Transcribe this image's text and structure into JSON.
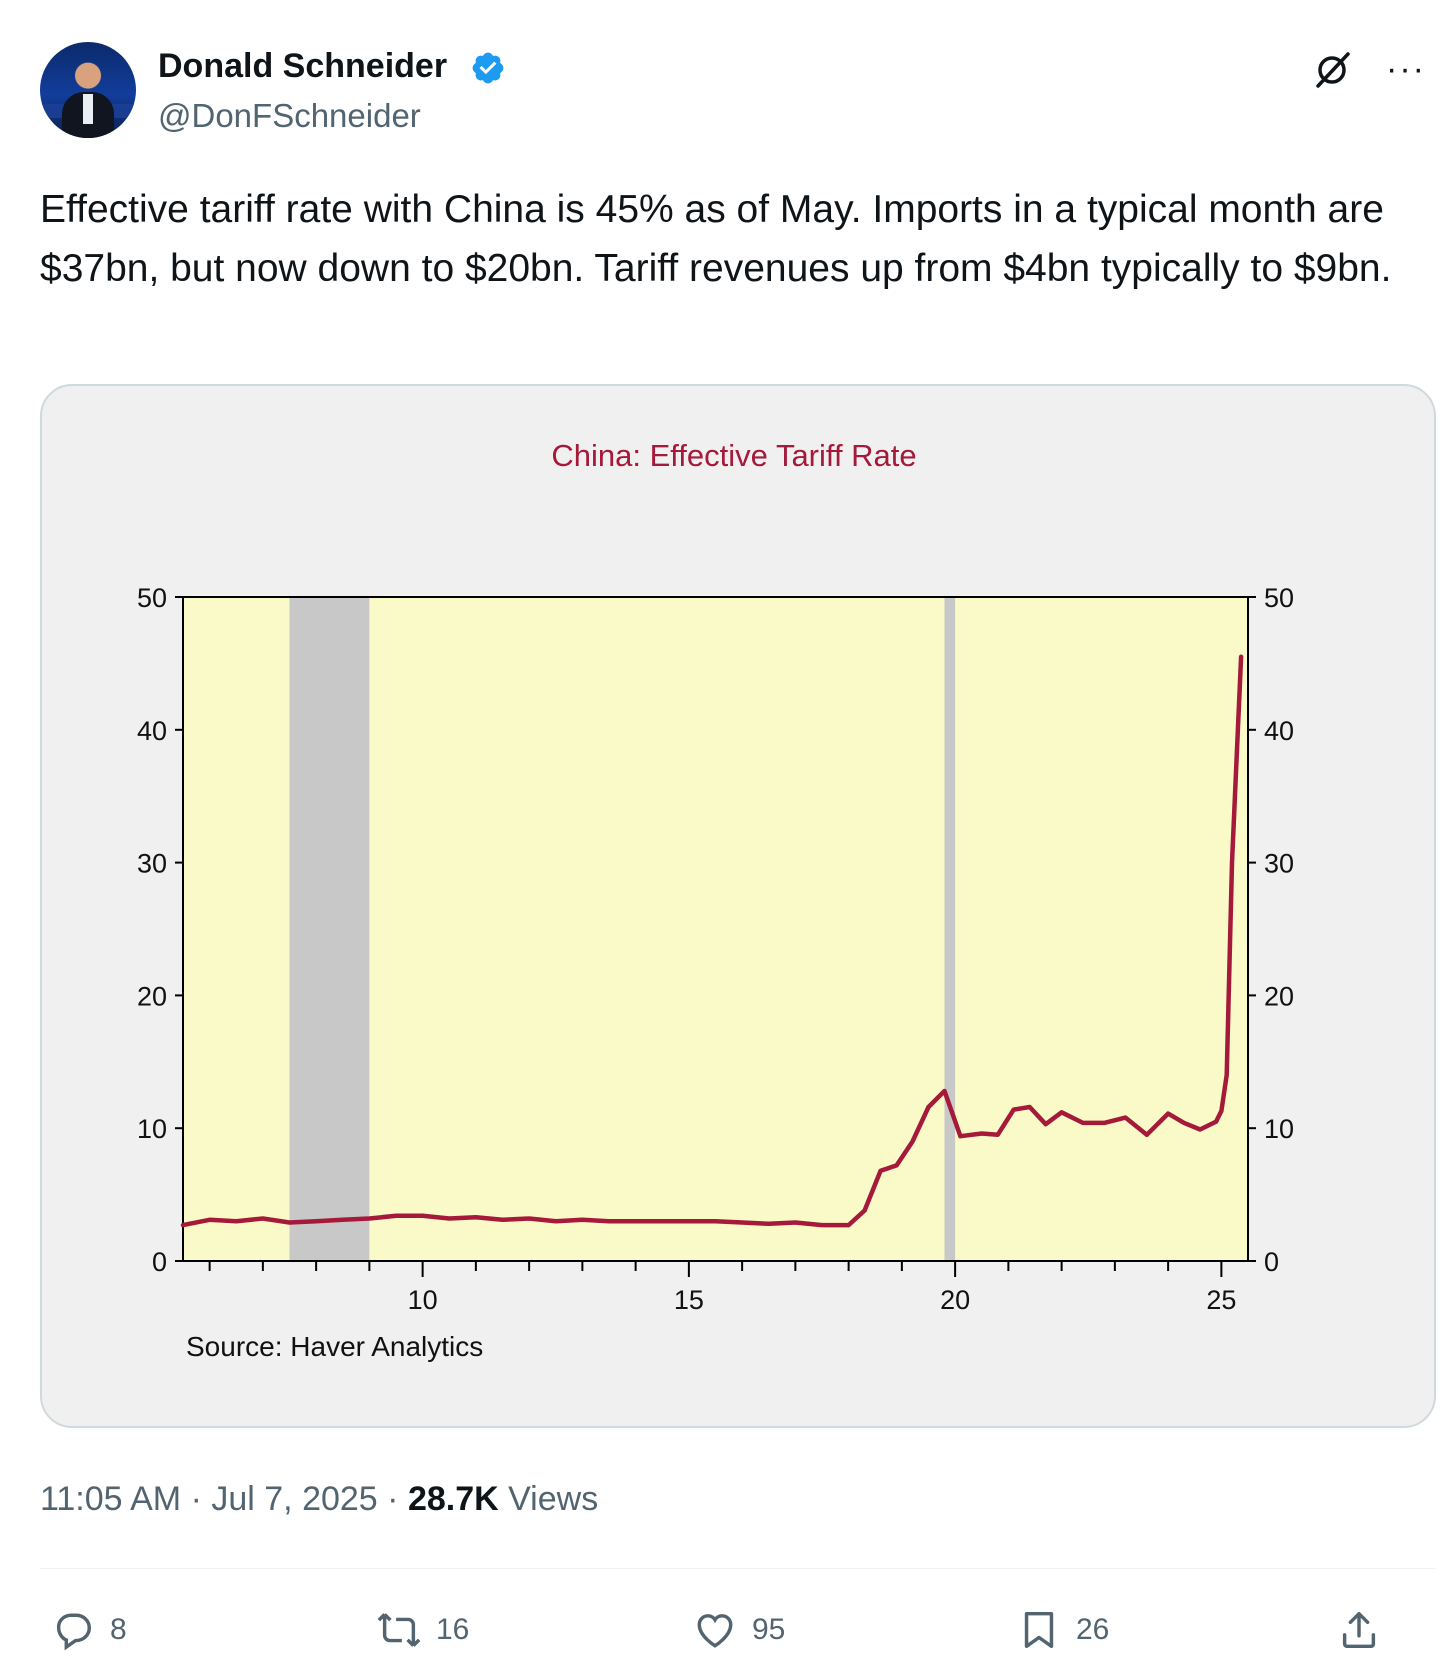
{
  "author": {
    "name": "Donald Schneider",
    "handle": "@DonFSchneider",
    "verified": true,
    "accent_color": "#1d9bf0"
  },
  "icons": {
    "grok": "grok-icon",
    "more": "more-options-icon"
  },
  "tweet": {
    "text": "Effective tariff rate with China is 45% as of May. Imports in a typical month are $37bn, but now down to $20bn. Tariff revenues up from $4bn typically to $9bn."
  },
  "chart_data": {
    "type": "line",
    "title": "China: Effective Tariff Rate",
    "source": "Source:  Haver Analytics",
    "ylim": [
      0,
      50
    ],
    "yticks": [
      "0",
      "10",
      "20",
      "30",
      "40",
      "50"
    ],
    "xtick_labels": [
      "10",
      "15",
      "20",
      "25"
    ],
    "xlim": [
      2005.5,
      2025.5
    ],
    "recession_shading": [
      [
        2007.5,
        2009.0
      ],
      [
        2019.8,
        2020.0
      ]
    ],
    "colors": {
      "line": "#a51a3a",
      "plot_bg": "#fafac8",
      "shading": "#c8c8c8",
      "title": "#a51a3a"
    },
    "series": [
      {
        "x": [
          2005.5,
          2006.0,
          2006.5,
          2007.0,
          2007.5,
          2008.0,
          2008.5,
          2009.0,
          2009.5,
          2010.0,
          2010.5,
          2011.0,
          2011.5,
          2012.0,
          2012.5,
          2013.0,
          2013.5,
          2014.0,
          2014.5,
          2015.0,
          2015.5,
          2016.0,
          2016.5,
          2017.0,
          2017.5,
          2018.0,
          2018.3,
          2018.6,
          2018.9,
          2019.2,
          2019.5,
          2019.8,
          2020.1,
          2020.5,
          2020.8,
          2021.1,
          2021.4,
          2021.7,
          2022.0,
          2022.4,
          2022.8,
          2023.2,
          2023.6,
          2024.0,
          2024.3,
          2024.6,
          2024.9,
          2025.0,
          2025.1,
          2025.2,
          2025.37
        ],
        "values": [
          2.7,
          3.1,
          3.0,
          3.2,
          2.9,
          3.0,
          3.1,
          3.2,
          3.4,
          3.4,
          3.2,
          3.3,
          3.1,
          3.2,
          3.0,
          3.1,
          3.0,
          3.0,
          3.0,
          3.0,
          3.0,
          2.9,
          2.8,
          2.9,
          2.7,
          2.7,
          3.8,
          6.8,
          7.2,
          9.0,
          11.6,
          12.8,
          9.4,
          9.6,
          9.5,
          11.4,
          11.6,
          10.3,
          11.2,
          10.4,
          10.4,
          10.8,
          9.5,
          11.1,
          10.4,
          9.9,
          10.5,
          11.3,
          14.0,
          30.0,
          45.5
        ]
      }
    ]
  },
  "footer": {
    "time": "11:05 AM",
    "separator": " · ",
    "date": "Jul 7, 2025",
    "views_count": "28.7K",
    "views_label": " Views"
  },
  "actions": {
    "replies": "8",
    "reposts": "16",
    "likes": "95",
    "bookmarks": "26"
  }
}
